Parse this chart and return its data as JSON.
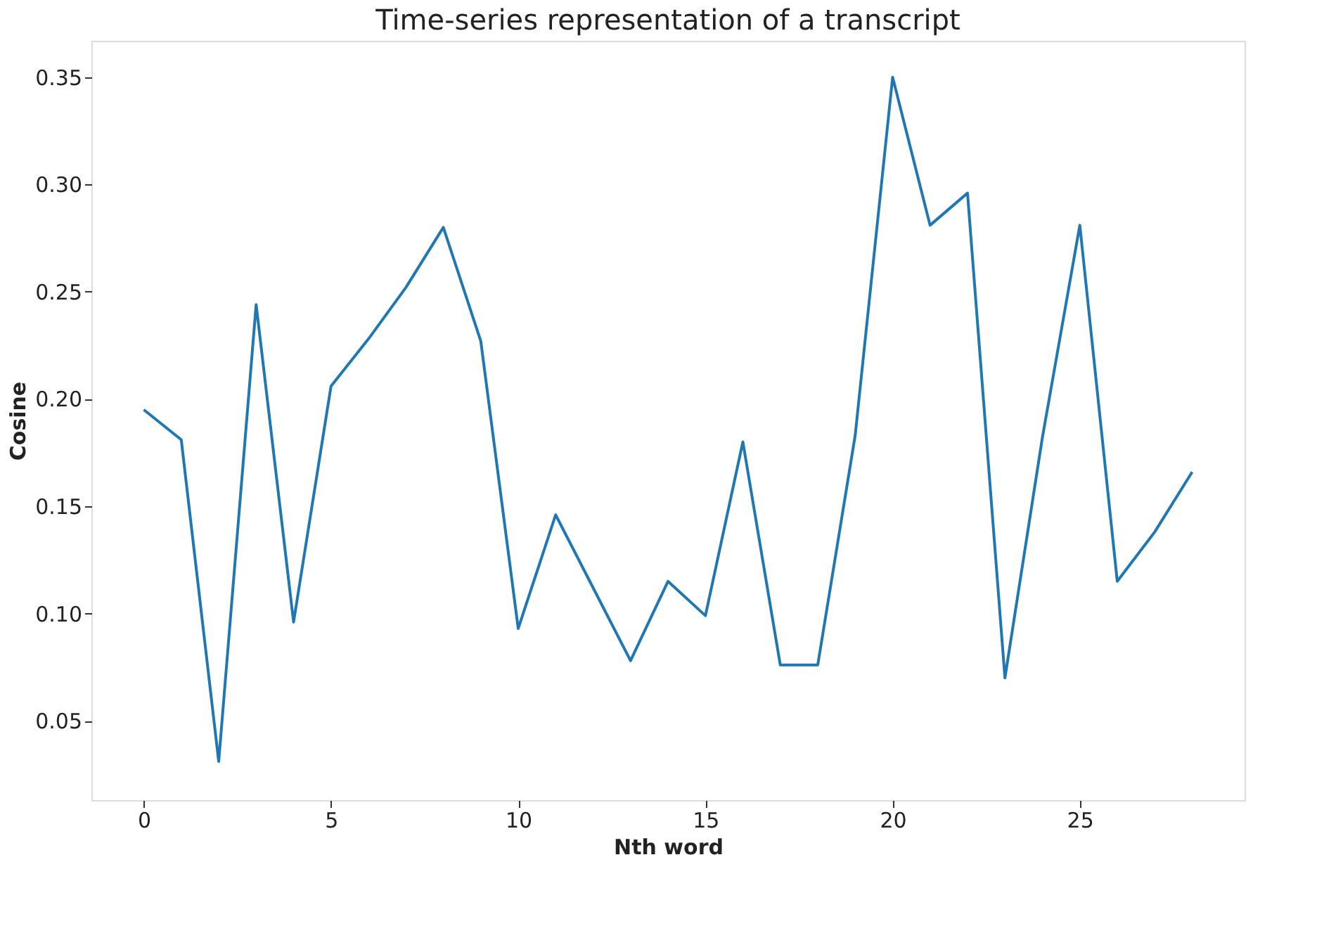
{
  "chart_data": {
    "type": "line",
    "title": "Time-series representation of a transcript",
    "xlabel": "Nth word",
    "ylabel": "Cosine",
    "x": [
      0,
      1,
      2,
      3,
      4,
      5,
      6,
      7,
      8,
      9,
      10,
      11,
      12,
      13,
      14,
      15,
      16,
      17,
      18,
      19,
      20,
      21,
      22,
      23,
      24,
      25,
      26,
      27,
      28
    ],
    "series": [
      {
        "color": "#1f77b4",
        "values": [
          0.195,
          0.181,
          0.031,
          0.244,
          0.096,
          0.206,
          0.228,
          0.252,
          0.28,
          0.227,
          0.093,
          0.146,
          0.112,
          0.078,
          0.115,
          0.099,
          0.18,
          0.076,
          0.076,
          0.183,
          0.35,
          0.281,
          0.296,
          0.07,
          0.182,
          0.281,
          0.115,
          0.138,
          0.166
        ]
      }
    ],
    "xlim": [
      -1.4,
      29.4
    ],
    "ylim": [
      0.013,
      0.367
    ],
    "xticks": [
      0,
      5,
      10,
      15,
      20,
      25
    ],
    "yticks": [
      {
        "value": 0.05,
        "label": "0.05"
      },
      {
        "value": 0.1,
        "label": "0.10"
      },
      {
        "value": 0.15,
        "label": "0.15"
      },
      {
        "value": 0.2,
        "label": "0.20"
      },
      {
        "value": 0.25,
        "label": "0.25"
      },
      {
        "value": 0.3,
        "label": "0.30"
      },
      {
        "value": 0.35,
        "label": "0.35"
      }
    ],
    "grid": false,
    "legend": false
  }
}
